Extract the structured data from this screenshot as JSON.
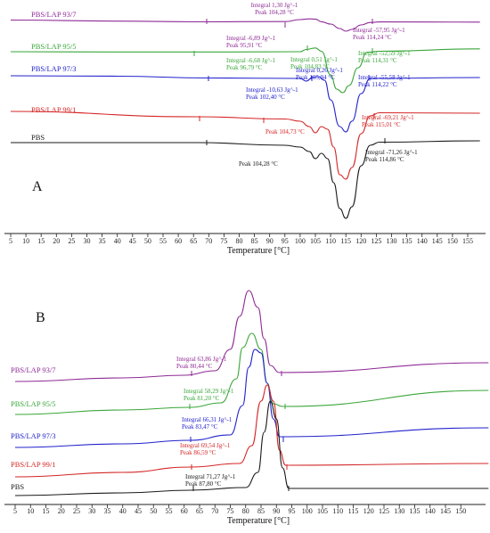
{
  "chart_data": [
    {
      "type": "line",
      "panel_label": "A",
      "xlabel": "Temperature [°C]",
      "ylabel": "",
      "xlim": [
        5,
        159
      ],
      "x_ticks": [
        5,
        10,
        15,
        20,
        25,
        30,
        35,
        40,
        45,
        50,
        55,
        60,
        65,
        70,
        75,
        80,
        85,
        90,
        95,
        100,
        105,
        110,
        115,
        120,
        125,
        130,
        135,
        140,
        145,
        150,
        155
      ],
      "grid": false,
      "series": [
        {
          "name": "PBS/LAP 93/7",
          "color": "#8e2a96",
          "points": [
            [
              5,
              22.5
            ],
            [
              40,
              23.7
            ],
            [
              66,
              24.5
            ],
            [
              95,
              24.2
            ],
            [
              100,
              22.0
            ],
            [
              103,
              21.2
            ],
            [
              105,
              21.4
            ],
            [
              107,
              24.4
            ],
            [
              110,
              27.0
            ],
            [
              113,
              32.0
            ],
            [
              115,
              35.0
            ],
            [
              117,
              33.0
            ],
            [
              120,
              28.0
            ],
            [
              123,
              25.2
            ],
            [
              126,
              24.6
            ],
            [
              159,
              24.8
            ]
          ],
          "annotations": [
            {
              "lines": [
                "Integral  1,30 Jg^-1",
                "Peak  104,28 °C"
              ]
            },
            {
              "lines": [
                "Integral  -6,89 Jg^-1",
                "Peak  95,91 °C"
              ]
            },
            {
              "lines": [
                "Integral  -57,95 Jg^-1",
                "Peak  114,24 °C"
              ]
            }
          ]
        },
        {
          "name": "PBS/LAP 95/5",
          "color": "#3aa63a",
          "points": [
            [
              5,
              58.0
            ],
            [
              40,
              58.3
            ],
            [
              75,
              58.3
            ],
            [
              100,
              58.0
            ],
            [
              102,
              55.5
            ],
            [
              105,
              53.8
            ],
            [
              107,
              57.5
            ],
            [
              110,
              84.0
            ],
            [
              112,
              100.0
            ],
            [
              114,
              104.0
            ],
            [
              116,
              96.0
            ],
            [
              119,
              76.0
            ],
            [
              122,
              58.5
            ],
            [
              126,
              57.5
            ],
            [
              159,
              54.8
            ]
          ],
          "annotations": [
            {
              "lines": [
                "Integral  -6,68 Jg^-1",
                "Peak  96,79 °C"
              ]
            },
            {
              "lines": [
                "Integral  0,51 Jg^-1",
                "Peak  104,83 °C"
              ]
            },
            {
              "lines": [
                "Integral  -52,59 Jg^-1",
                "Peak  114,31 °C"
              ]
            }
          ]
        },
        {
          "name": "PBS/LAP 97/3",
          "color": "#2222cc",
          "points": [
            [
              5,
              85.0
            ],
            [
              40,
              85.5
            ],
            [
              70,
              87.5
            ],
            [
              100,
              88.0
            ],
            [
              102,
              91.0
            ],
            [
              104,
              87.0
            ],
            [
              106,
              86.0
            ],
            [
              108,
              90.0
            ],
            [
              110,
              112.0
            ],
            [
              113,
              142.0
            ],
            [
              115,
              148.0
            ],
            [
              117,
              136.0
            ],
            [
              120,
              105.0
            ],
            [
              123,
              88.0
            ],
            [
              159,
              87.0
            ]
          ],
          "annotations": [
            {
              "lines": [
                "Integral  -10,63 Jg^-1",
                "Peak  102,40 °C"
              ]
            },
            {
              "lines": [
                "Integral  0,26 Jg^-1",
                "Peak  105,94 °C"
              ]
            },
            {
              "lines": [
                "Integral  -55,58 Jg^-1",
                "Peak  114,22 °C"
              ]
            }
          ]
        },
        {
          "name": "PBS/LAP 99/1",
          "color": "#d42626",
          "points": [
            [
              5,
              125.0
            ],
            [
              66,
              131.0
            ],
            [
              95,
              133.5
            ],
            [
              100,
              136.0
            ],
            [
              103,
              142.0
            ],
            [
              105,
              149.0
            ],
            [
              107,
              142.0
            ],
            [
              109,
              145.0
            ],
            [
              111,
              165.0
            ],
            [
              113,
              196.0
            ],
            [
              115,
              201.0
            ],
            [
              117,
              188.0
            ],
            [
              120,
              150.0
            ],
            [
              123,
              130.0
            ],
            [
              126,
              126.5
            ],
            [
              159,
              127.0
            ]
          ],
          "annotations": [
            {
              "lines": [
                "Peak  104,73 °C"
              ]
            },
            {
              "lines": [
                "Integral  -69,21 Jg^-1",
                "Peak  115,01 °C"
              ]
            }
          ]
        },
        {
          "name": "PBS",
          "color": "#1a1a1a",
          "points": [
            [
              5,
              160.0
            ],
            [
              66,
              160.0
            ],
            [
              95,
              163.0
            ],
            [
              100,
              165.0
            ],
            [
              103,
              170.0
            ],
            [
              105,
              178.0
            ],
            [
              107,
              172.0
            ],
            [
              109,
              178.0
            ],
            [
              111,
              205.0
            ],
            [
              113,
              234.0
            ],
            [
              115,
              245.0
            ],
            [
              117,
              232.0
            ],
            [
              120,
              186.0
            ],
            [
              123,
              163.0
            ],
            [
              126,
              159.5
            ],
            [
              159,
              158.0
            ]
          ],
          "annotations": [
            {
              "lines": [
                "Peak  104,28 °C"
              ]
            },
            {
              "lines": [
                "Integral  -71,26 Jg^-1",
                "Peak  114,86 °C"
              ]
            }
          ]
        }
      ]
    },
    {
      "type": "line",
      "panel_label": "B",
      "xlabel": "Temperature [°C]",
      "ylabel": "",
      "xlim": [
        5,
        159
      ],
      "x_ticks": [
        5,
        10,
        15,
        20,
        25,
        30,
        35,
        40,
        45,
        50,
        55,
        60,
        65,
        70,
        75,
        80,
        85,
        90,
        95,
        100,
        105,
        110,
        115,
        120,
        125,
        130,
        135,
        140,
        145,
        150
      ],
      "grid": false,
      "series": [
        {
          "name": "PBS/LAP 93/7",
          "color": "#8e2a96",
          "points": [
            [
              5,
              428.0
            ],
            [
              40,
              424.0
            ],
            [
              60,
              421.0
            ],
            [
              70,
              416.0
            ],
            [
              75,
              392.0
            ],
            [
              78,
              355.0
            ],
            [
              81,
              326.0
            ],
            [
              84,
              345.0
            ],
            [
              86,
              380.0
            ],
            [
              88,
              410.0
            ],
            [
              91,
              418.0
            ],
            [
              159,
              407.0
            ]
          ],
          "annotations": [
            {
              "lines": [
                "Integral  63,86 Jg^-1",
                "Peak  80,44 °C"
              ]
            }
          ]
        },
        {
          "name": "PBS/LAP 95/5",
          "color": "#3aa63a",
          "points": [
            [
              5,
              465.0
            ],
            [
              40,
              460.0
            ],
            [
              62,
              457.0
            ],
            [
              72,
              452.0
            ],
            [
              77,
              425.0
            ],
            [
              79,
              390.0
            ],
            [
              82,
              374.0
            ],
            [
              85,
              392.0
            ],
            [
              87,
              430.0
            ],
            [
              89,
              453.0
            ],
            [
              92,
              456.0
            ],
            [
              159,
              438.0
            ]
          ],
          "annotations": [
            {
              "lines": [
                "Integral  58,29 Jg^-1",
                "Peak  81,20 °C"
              ]
            }
          ]
        },
        {
          "name": "PBS/LAP 97/3",
          "color": "#2222cc",
          "points": [
            [
              5,
              502.0
            ],
            [
              40,
              498.0
            ],
            [
              62,
              494.0
            ],
            [
              75,
              488.0
            ],
            [
              79,
              455.0
            ],
            [
              81,
              412.0
            ],
            [
              83,
              392.0
            ],
            [
              85,
              396.0
            ],
            [
              87,
              430.0
            ],
            [
              89,
              470.0
            ],
            [
              91,
              490.0
            ],
            [
              159,
              480.0
            ]
          ],
          "annotations": [
            {
              "lines": [
                "Integral  66,31 Jg^-1",
                "Peak  83,47 °C"
              ]
            }
          ]
        },
        {
          "name": "PBS/LAP 99/1",
          "color": "#d42626",
          "points": [
            [
              5,
              535.0
            ],
            [
              40,
              530.0
            ],
            [
              62,
              524.0
            ],
            [
              78,
              520.0
            ],
            [
              82,
              500.0
            ],
            [
              85,
              450.0
            ],
            [
              87,
              432.0
            ],
            [
              89,
              450.0
            ],
            [
              91,
              505.0
            ],
            [
              93,
              522.0
            ],
            [
              159,
              520.0
            ]
          ],
          "annotations": [
            {
              "lines": [
                "Integral  69,54 Jg^-1",
                "Peak  86,59 °C"
              ]
            }
          ]
        },
        {
          "name": "PBS",
          "color": "#1a1a1a",
          "points": [
            [
              5,
              556.0
            ],
            [
              40,
              553.0
            ],
            [
              62,
              550.0
            ],
            [
              80,
              547.0
            ],
            [
              84,
              530.0
            ],
            [
              86,
              485.0
            ],
            [
              88,
              450.0
            ],
            [
              90,
              470.0
            ],
            [
              92,
              525.0
            ],
            [
              94,
              548.0
            ],
            [
              159,
              548.0
            ]
          ],
          "annotations": [
            {
              "lines": [
                "Integral  71,27 Jg^-1",
                "Peak  87,80 °C"
              ]
            }
          ]
        }
      ]
    }
  ]
}
